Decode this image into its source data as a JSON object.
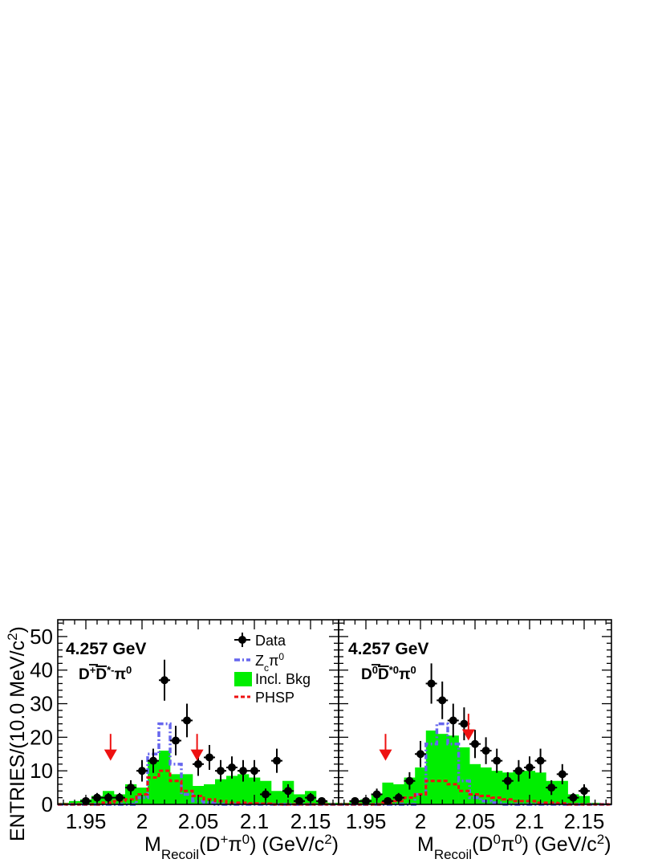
{
  "chart_data": [
    {
      "type": "bar",
      "energy_label": "4.257 GeV",
      "channel_label": {
        "pre": "D",
        "pre_sup": "+",
        "bar": "D",
        "bar_sup": "*-",
        "post": "π",
        "post_sup": "0"
      },
      "xlabel": {
        "main": "M",
        "sub": "Recoil",
        "arg": "(D",
        "arg_sup": "+",
        "arg2": "π",
        "arg2_sup": "0",
        "tail": ") (GeV/c",
        "tail_sup": "2",
        "end": ")"
      },
      "xlim": [
        1.925,
        2.175
      ],
      "ylim": [
        0,
        55
      ],
      "xticks": [
        "1.95",
        "2",
        "2.05",
        "2.1",
        "2.15"
      ],
      "xtick_values": [
        1.95,
        2.0,
        2.05,
        2.1,
        2.15
      ],
      "bin_edges": [
        1.925,
        1.935,
        1.945,
        1.955,
        1.965,
        1.975,
        1.985,
        1.995,
        2.005,
        2.015,
        2.025,
        2.035,
        2.045,
        2.055,
        2.065,
        2.075,
        2.085,
        2.095,
        2.105,
        2.115,
        2.125,
        2.135,
        2.145,
        2.155,
        2.165,
        2.175
      ],
      "incl_bkg": [
        0.5,
        1,
        1.5,
        2.5,
        4,
        3,
        6,
        5,
        13,
        16,
        9,
        9,
        5.5,
        6,
        7.5,
        8.5,
        9,
        8,
        7,
        4,
        7,
        3,
        4,
        1,
        0.5
      ],
      "zc": [
        0,
        0,
        0,
        0,
        0,
        0,
        0,
        2,
        15,
        24,
        12,
        3,
        1,
        0.5,
        0,
        0,
        0,
        0,
        0,
        0,
        0,
        0,
        0,
        0,
        0
      ],
      "phsp": [
        0,
        0,
        0,
        0,
        0.5,
        1,
        1.5,
        3,
        8,
        10,
        7,
        4,
        2.5,
        1.5,
        1,
        0.5,
        0.5,
        0.3,
        0.2,
        0,
        0,
        0,
        0,
        0,
        0
      ],
      "data_points": [
        {
          "x": 1.95,
          "y": 1,
          "err": 1
        },
        {
          "x": 1.96,
          "y": 2,
          "err": 1.4
        },
        {
          "x": 1.97,
          "y": 2,
          "err": 1.4
        },
        {
          "x": 1.98,
          "y": 2,
          "err": 1.4
        },
        {
          "x": 1.99,
          "y": 5,
          "err": 2.2
        },
        {
          "x": 2.0,
          "y": 10,
          "err": 3.2
        },
        {
          "x": 2.01,
          "y": 13,
          "err": 3.6
        },
        {
          "x": 2.02,
          "y": 37,
          "err": 6.1
        },
        {
          "x": 2.03,
          "y": 19,
          "err": 4.4
        },
        {
          "x": 2.04,
          "y": 25,
          "err": 5.0
        },
        {
          "x": 2.05,
          "y": 12,
          "err": 3.5
        },
        {
          "x": 2.06,
          "y": 14,
          "err": 3.7
        },
        {
          "x": 2.07,
          "y": 10,
          "err": 3.2
        },
        {
          "x": 2.08,
          "y": 11,
          "err": 3.3
        },
        {
          "x": 2.09,
          "y": 10,
          "err": 3.2
        },
        {
          "x": 2.1,
          "y": 10,
          "err": 3.2
        },
        {
          "x": 2.11,
          "y": 3,
          "err": 1.7
        },
        {
          "x": 2.12,
          "y": 13,
          "err": 3.6
        },
        {
          "x": 2.13,
          "y": 4,
          "err": 2.0
        },
        {
          "x": 2.14,
          "y": 1,
          "err": 1
        },
        {
          "x": 2.15,
          "y": 2,
          "err": 1.4
        },
        {
          "x": 2.16,
          "y": 1,
          "err": 1
        }
      ],
      "arrows": [
        {
          "x": 1.972,
          "y_top": 21,
          "y_tip": 13
        },
        {
          "x": 2.049,
          "y_top": 21,
          "y_tip": 13
        }
      ]
    },
    {
      "type": "bar",
      "energy_label": "4.257 GeV",
      "channel_label": {
        "pre": "D",
        "pre_sup": "0",
        "bar": "D",
        "bar_sup": "*0",
        "post": "π",
        "post_sup": "0"
      },
      "xlabel": {
        "main": "M",
        "sub": "Recoil",
        "arg": "(D",
        "arg_sup": "0",
        "arg2": "π",
        "arg2_sup": "0",
        "tail": ") (GeV/c",
        "tail_sup": "2",
        "end": ")"
      },
      "xlim": [
        1.925,
        2.175
      ],
      "ylim": [
        0,
        55
      ],
      "xticks": [
        "1.95",
        "2",
        "2.05",
        "2.1",
        "2.15"
      ],
      "xtick_values": [
        1.95,
        2.0,
        2.05,
        2.1,
        2.15
      ],
      "bin_edges": [
        1.925,
        1.935,
        1.945,
        1.955,
        1.965,
        1.975,
        1.985,
        1.995,
        2.005,
        2.015,
        2.025,
        2.035,
        2.045,
        2.055,
        2.065,
        2.075,
        2.085,
        2.095,
        2.105,
        2.115,
        2.125,
        2.135,
        2.145,
        2.155,
        2.165,
        2.175
      ],
      "incl_bkg": [
        0.5,
        1,
        1.5,
        3,
        6.5,
        6,
        8,
        11,
        22,
        21,
        20.5,
        17,
        12,
        11,
        10,
        9.5,
        10,
        10,
        9.5,
        7,
        7,
        3,
        2.5,
        0.5,
        0.3
      ],
      "zc": [
        0,
        0,
        0,
        0,
        0,
        0,
        0,
        3,
        18,
        24,
        18,
        7,
        2,
        1,
        0.5,
        0,
        0,
        0,
        0,
        0,
        0,
        0,
        0,
        0,
        0
      ],
      "phsp": [
        0,
        0,
        0,
        0,
        0.5,
        1,
        2,
        3,
        7,
        7,
        6,
        4,
        3,
        2.5,
        2,
        1.5,
        1,
        1,
        0.5,
        0.5,
        0.3,
        0,
        0,
        0,
        0
      ],
      "data_points": [
        {
          "x": 1.94,
          "y": 1,
          "err": 1
        },
        {
          "x": 1.95,
          "y": 1,
          "err": 1
        },
        {
          "x": 1.96,
          "y": 3,
          "err": 1.7
        },
        {
          "x": 1.97,
          "y": 1,
          "err": 1
        },
        {
          "x": 1.98,
          "y": 2,
          "err": 1.4
        },
        {
          "x": 1.99,
          "y": 7,
          "err": 2.6
        },
        {
          "x": 2.0,
          "y": 15,
          "err": 3.9
        },
        {
          "x": 2.01,
          "y": 36,
          "err": 6.0
        },
        {
          "x": 2.02,
          "y": 31,
          "err": 5.6
        },
        {
          "x": 2.03,
          "y": 25,
          "err": 5.0
        },
        {
          "x": 2.04,
          "y": 24,
          "err": 4.9
        },
        {
          "x": 2.05,
          "y": 18,
          "err": 4.2
        },
        {
          "x": 2.06,
          "y": 16,
          "err": 4.0
        },
        {
          "x": 2.07,
          "y": 13,
          "err": 3.6
        },
        {
          "x": 2.08,
          "y": 7,
          "err": 2.6
        },
        {
          "x": 2.09,
          "y": 10,
          "err": 3.2
        },
        {
          "x": 2.1,
          "y": 11,
          "err": 3.3
        },
        {
          "x": 2.11,
          "y": 13,
          "err": 3.6
        },
        {
          "x": 2.12,
          "y": 5,
          "err": 2.2
        },
        {
          "x": 2.13,
          "y": 9,
          "err": 3.0
        },
        {
          "x": 2.14,
          "y": 2,
          "err": 1.4
        },
        {
          "x": 2.15,
          "y": 4,
          "err": 2.0
        }
      ],
      "arrows": [
        {
          "x": 1.968,
          "y_top": 21,
          "y_tip": 13
        },
        {
          "x": 2.044,
          "y_top": 27,
          "y_tip": 19
        }
      ]
    }
  ],
  "ylabel": {
    "main": "ENTRIES/(10.0 MeV/c",
    "sup": "2",
    "end": ")"
  },
  "yticks": [
    "0",
    "10",
    "20",
    "30",
    "40",
    "50"
  ],
  "ytick_values": [
    0,
    10,
    20,
    30,
    40,
    50
  ],
  "legend": {
    "data": "Data",
    "zc": {
      "main": "Z",
      "sub": "c",
      "mid": "π",
      "sup": "0"
    },
    "incl": "Incl. Bkg",
    "phsp": "PHSP"
  },
  "colors": {
    "incl": "#00ee00",
    "zc": "#6666ee",
    "phsp": "#ee1111",
    "arrow": "#ee1111",
    "data": "#000000"
  }
}
